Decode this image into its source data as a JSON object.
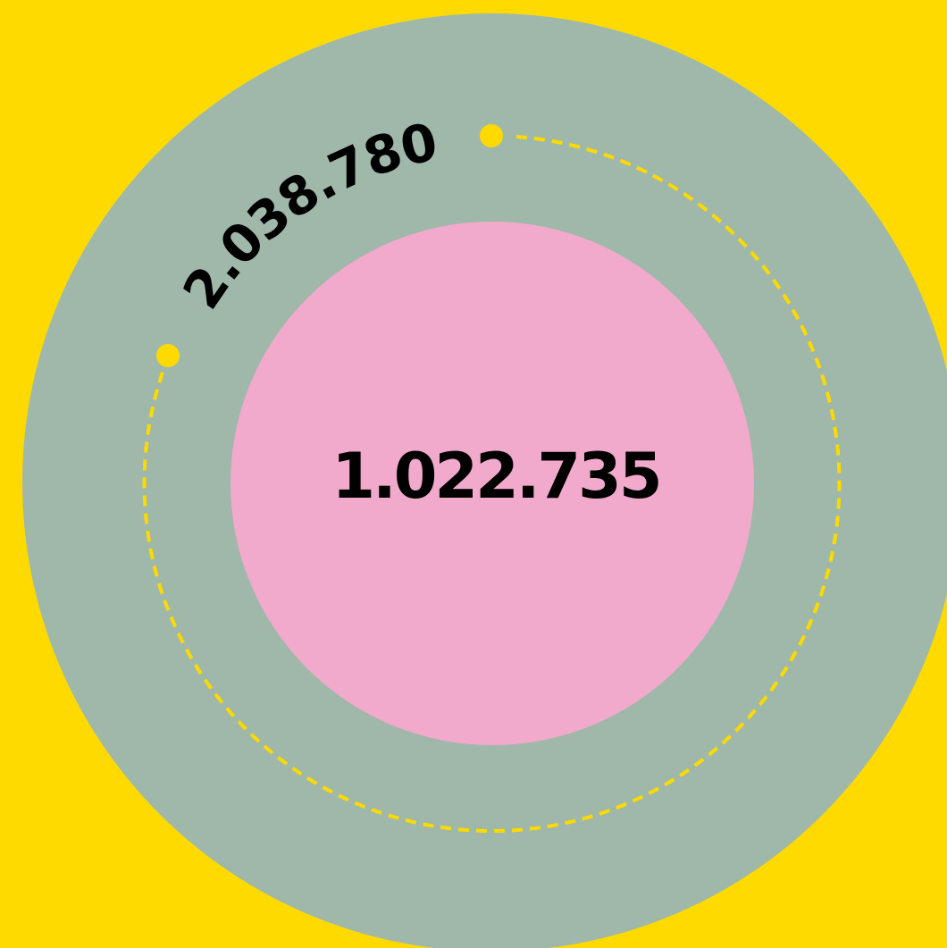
{
  "outer": {
    "label": "2.038.780"
  },
  "inner": {
    "label": "1.022.735"
  }
}
